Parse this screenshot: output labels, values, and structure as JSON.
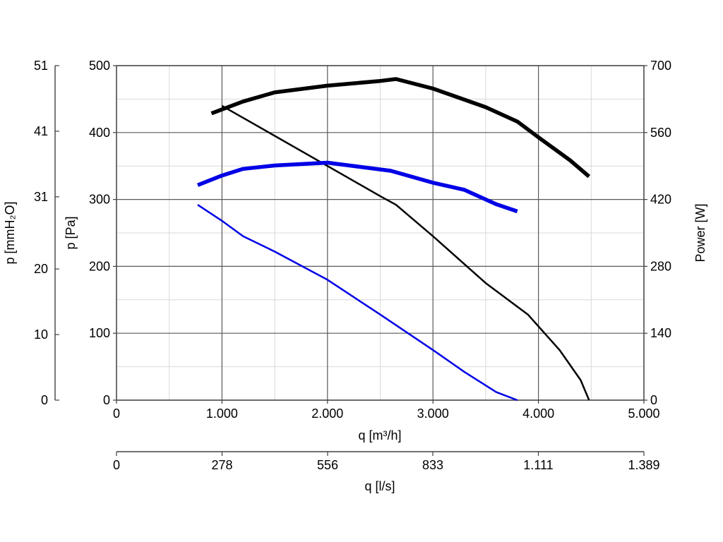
{
  "chart_data": {
    "type": "line",
    "xlabel": "q [m³/h]",
    "x2label": "q [l/s]",
    "ylabel": "p [Pa]",
    "y2label": "p [mmH₂O]",
    "y3label": "Power [W]",
    "xlim": [
      0,
      5000
    ],
    "ylim": [
      0,
      500
    ],
    "x_ticks": [
      {
        "value": 0,
        "label": "0"
      },
      {
        "value": 1000,
        "label": "1.000"
      },
      {
        "value": 2000,
        "label": "2.000"
      },
      {
        "value": 3000,
        "label": "3.000"
      },
      {
        "value": 4000,
        "label": "4.000"
      },
      {
        "value": 5000,
        "label": "5.000"
      }
    ],
    "x2_ticks": [
      {
        "value": 0,
        "label": "0"
      },
      {
        "value": 278,
        "label": "278"
      },
      {
        "value": 556,
        "label": "556"
      },
      {
        "value": 833,
        "label": "833"
      },
      {
        "value": 1111,
        "label": "1.111"
      },
      {
        "value": 1389,
        "label": "1.389"
      }
    ],
    "y_ticks": [
      {
        "value": 0,
        "label": "0"
      },
      {
        "value": 100,
        "label": "100"
      },
      {
        "value": 200,
        "label": "200"
      },
      {
        "value": 300,
        "label": "300"
      },
      {
        "value": 400,
        "label": "400"
      },
      {
        "value": 500,
        "label": "500"
      }
    ],
    "y2_ticks": [
      {
        "value": 0,
        "label": "0"
      },
      {
        "value": 10,
        "label": "10"
      },
      {
        "value": 20,
        "label": "20"
      },
      {
        "value": 31,
        "label": "31"
      },
      {
        "value": 41,
        "label": "41"
      },
      {
        "value": 51,
        "label": "51"
      }
    ],
    "y3_ticks": [
      {
        "value": 0,
        "label": "0"
      },
      {
        "value": 140,
        "label": "140"
      },
      {
        "value": 280,
        "label": "280"
      },
      {
        "value": 420,
        "label": "420"
      },
      {
        "value": 560,
        "label": "560"
      },
      {
        "value": 700,
        "label": "700"
      }
    ],
    "grid": {
      "major": true,
      "minor": true
    },
    "series": [
      {
        "axis": "pressure",
        "color": "#000000",
        "points": [
          [
            1000,
            440
          ],
          [
            1500,
            395
          ],
          [
            2000,
            350
          ],
          [
            2500,
            305
          ],
          [
            2650,
            292
          ],
          [
            3000,
            245
          ],
          [
            3500,
            175
          ],
          [
            3900,
            128
          ],
          [
            4200,
            75
          ],
          [
            4400,
            30
          ],
          [
            4480,
            0
          ]
        ]
      },
      {
        "axis": "power",
        "color": "#000000",
        "points": [
          [
            900,
            600
          ],
          [
            1200,
            625
          ],
          [
            1500,
            644
          ],
          [
            2000,
            658
          ],
          [
            2500,
            668
          ],
          [
            2650,
            672
          ],
          [
            3000,
            652
          ],
          [
            3500,
            613
          ],
          [
            3800,
            583
          ],
          [
            4000,
            550
          ],
          [
            4300,
            502
          ],
          [
            4480,
            468
          ]
        ]
      },
      {
        "axis": "pressure",
        "color": "#0000e6",
        "points": [
          [
            770,
            292
          ],
          [
            1000,
            268
          ],
          [
            1200,
            245
          ],
          [
            1500,
            222
          ],
          [
            2000,
            180
          ],
          [
            2500,
            128
          ],
          [
            3000,
            75
          ],
          [
            3300,
            42
          ],
          [
            3600,
            12
          ],
          [
            3800,
            0
          ]
        ]
      },
      {
        "axis": "power",
        "color": "#0000e6",
        "points": [
          [
            770,
            450
          ],
          [
            1000,
            470
          ],
          [
            1200,
            484
          ],
          [
            1500,
            491
          ],
          [
            2000,
            497
          ],
          [
            2600,
            480
          ],
          [
            3000,
            455
          ],
          [
            3300,
            440
          ],
          [
            3600,
            410
          ],
          [
            3800,
            395
          ]
        ]
      }
    ]
  }
}
